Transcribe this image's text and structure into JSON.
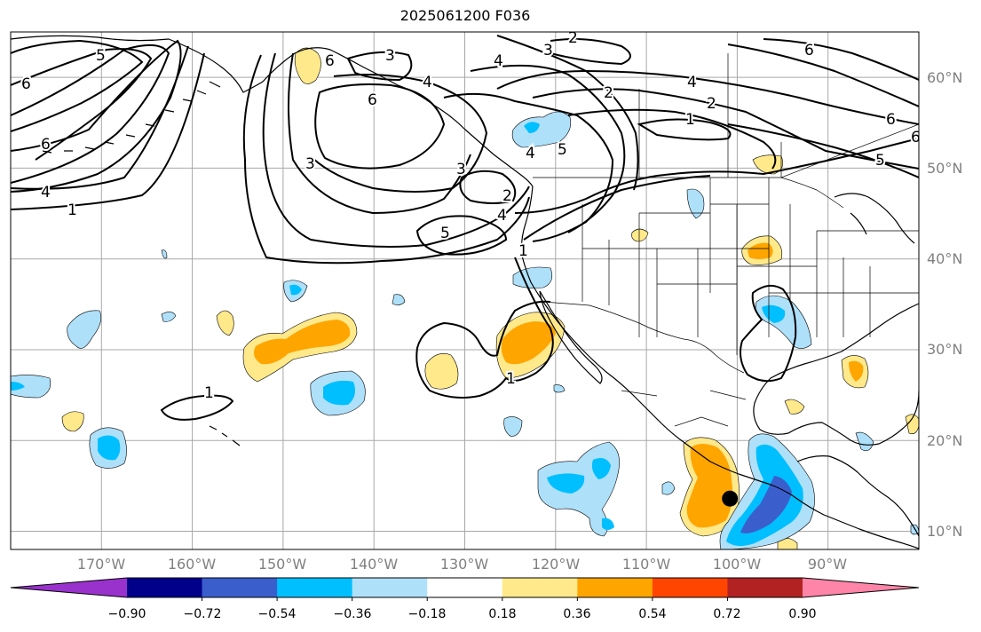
{
  "title": "2025061200 F036",
  "map": {
    "projection": "plate-carree",
    "lon_range": [
      -180,
      -80
    ],
    "lat_range": [
      8,
      65
    ],
    "latitude_labels": [
      "60°N",
      "50°N",
      "40°N",
      "30°N",
      "20°N",
      "10°N"
    ],
    "longitude_labels": [
      "170°W",
      "160°W",
      "150°W",
      "140°W",
      "130°W",
      "120°W",
      "110°W",
      "100°W",
      "90°W"
    ],
    "gridlines": true,
    "contour_labels": [
      "6",
      "5",
      "6",
      "4",
      "1",
      "6",
      "4",
      "3",
      "6",
      "3",
      "4",
      "3",
      "2",
      "2",
      "4",
      "1",
      "5",
      "4",
      "1",
      "3",
      "5",
      "2",
      "6",
      "5",
      "1",
      "1",
      "4",
      "6",
      "6",
      "2"
    ],
    "marker": {
      "type": "filled-circle",
      "lon": -100.8,
      "lat": 13.6,
      "color": "#000000"
    }
  },
  "colorbar": {
    "ticks": [
      "−0.90",
      "−0.72",
      "−0.54",
      "−0.36",
      "−0.18",
      "0.18",
      "0.36",
      "0.54",
      "0.72",
      "0.90"
    ],
    "colors": [
      "#9932cc",
      "#00008b",
      "#3a5fcd",
      "#00bfff",
      "#aee0fa",
      "#ffffff",
      "#ffe98a",
      "#ffa500",
      "#ff4500",
      "#b22222",
      "#ff85a8"
    ],
    "extend": "both"
  }
}
